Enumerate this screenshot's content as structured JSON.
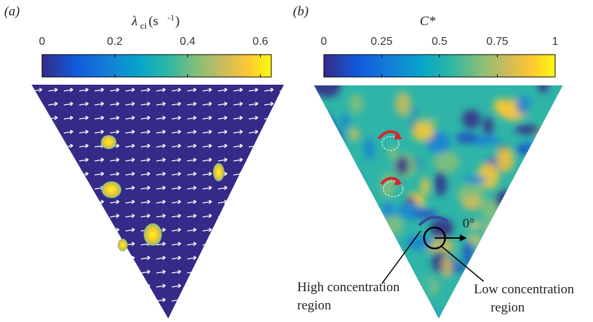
{
  "panels": [
    {
      "label": "(a)",
      "colorbar": {
        "symbol": "λ",
        "sub": "ci",
        "unit_open": " (s",
        "sup": "-1",
        "unit_close": ")",
        "lim": [
          0,
          0.63
        ],
        "ticks": [
          0,
          0.2,
          0.4,
          0.6
        ]
      }
    },
    {
      "label": "(b)",
      "colorbar": {
        "symbol": "C*",
        "lim": [
          0,
          1
        ],
        "ticks": [
          0,
          0.25,
          0.5,
          0.75,
          1
        ]
      },
      "annotations": {
        "angle": "0°",
        "high_line1": "High concentration",
        "high_line2": "region",
        "low_line1": "Low concentration",
        "low_line2": "region"
      }
    }
  ]
}
